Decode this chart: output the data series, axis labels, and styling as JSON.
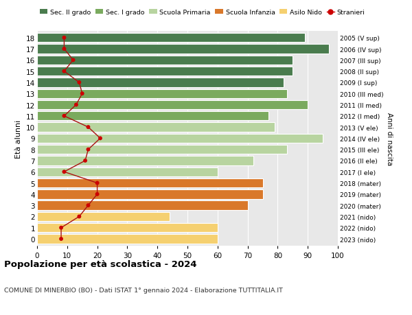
{
  "ages": [
    18,
    17,
    16,
    15,
    14,
    13,
    12,
    11,
    10,
    9,
    8,
    7,
    6,
    5,
    4,
    3,
    2,
    1,
    0
  ],
  "right_labels": [
    "2005 (V sup)",
    "2006 (IV sup)",
    "2007 (III sup)",
    "2008 (II sup)",
    "2009 (I sup)",
    "2010 (III med)",
    "2011 (II med)",
    "2012 (I med)",
    "2013 (V ele)",
    "2014 (IV ele)",
    "2015 (III ele)",
    "2016 (II ele)",
    "2017 (I ele)",
    "2018 (mater)",
    "2019 (mater)",
    "2020 (mater)",
    "2021 (nido)",
    "2022 (nido)",
    "2023 (nido)"
  ],
  "bar_values": [
    89,
    97,
    85,
    85,
    82,
    83,
    90,
    77,
    79,
    95,
    83,
    72,
    60,
    75,
    75,
    70,
    44,
    60,
    60
  ],
  "bar_colors": [
    "#4a7c4e",
    "#4a7c4e",
    "#4a7c4e",
    "#4a7c4e",
    "#4a7c4e",
    "#7aaa5e",
    "#7aaa5e",
    "#7aaa5e",
    "#b8d4a0",
    "#b8d4a0",
    "#b8d4a0",
    "#b8d4a0",
    "#b8d4a0",
    "#d9782a",
    "#d9782a",
    "#d9782a",
    "#f5d070",
    "#f5d070",
    "#f5d070"
  ],
  "stranieri_values": [
    9,
    9,
    12,
    9,
    14,
    15,
    13,
    9,
    17,
    21,
    17,
    16,
    9,
    20,
    20,
    17,
    14,
    8,
    8
  ],
  "xlim": [
    0,
    100
  ],
  "xlabel_ticks": [
    0,
    10,
    20,
    30,
    40,
    50,
    60,
    70,
    80,
    90,
    100
  ],
  "ylabel": "Età alunni",
  "right_ylabel": "Anni di nascita",
  "legend_items": [
    {
      "label": "Sec. II grado",
      "color": "#4a7c4e"
    },
    {
      "label": "Sec. I grado",
      "color": "#7aaa5e"
    },
    {
      "label": "Scuola Primaria",
      "color": "#b8d4a0"
    },
    {
      "label": "Scuola Infanzia",
      "color": "#d9782a"
    },
    {
      "label": "Asilo Nido",
      "color": "#f5d070"
    },
    {
      "label": "Stranieri",
      "color": "#cc0000"
    }
  ],
  "title": "Popolazione per età scolastica - 2024",
  "subtitle": "COMUNE DI MINERBIO (BO) - Dati ISTAT 1° gennaio 2024 - Elaborazione TUTTITALIA.IT",
  "bg_color": "#ffffff",
  "plot_bg_color": "#e8e8e8",
  "bar_height": 0.82
}
